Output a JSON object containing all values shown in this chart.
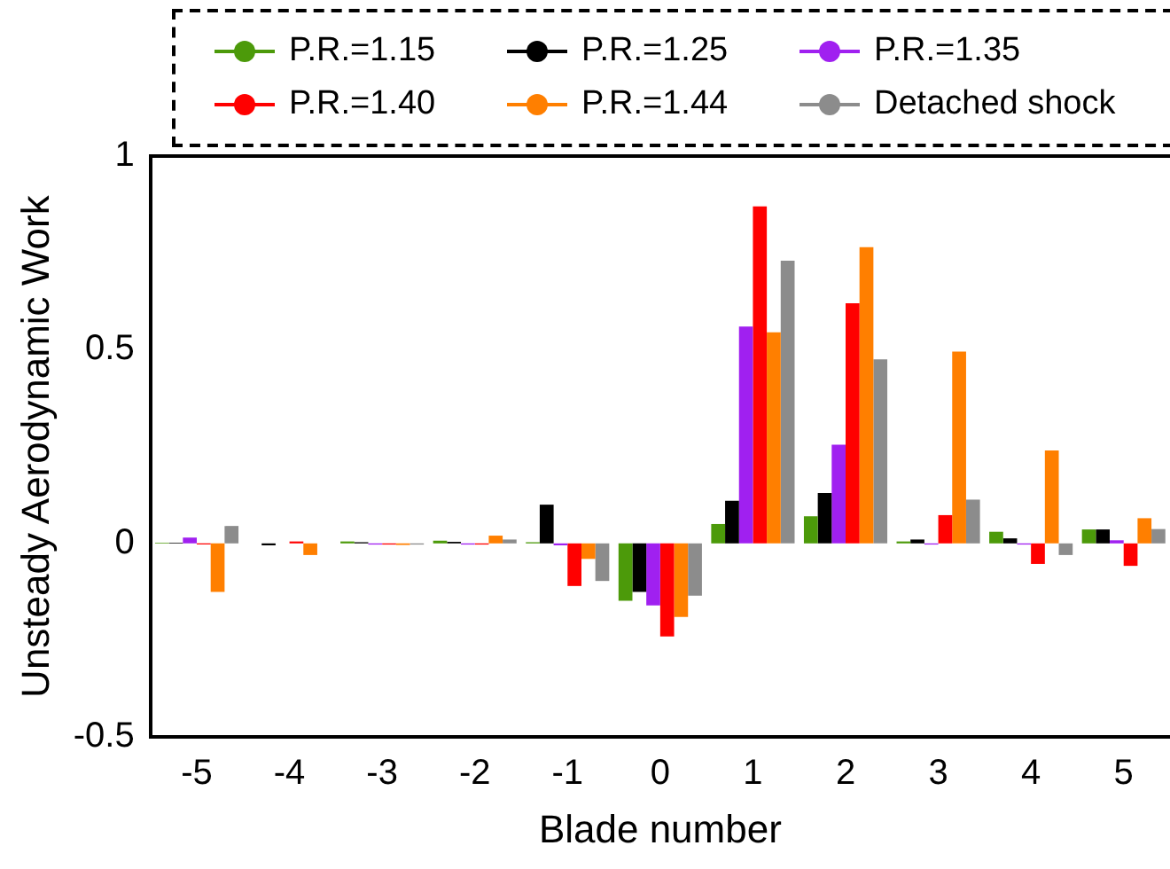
{
  "chart_data": {
    "type": "bar",
    "xlabel": "Blade number",
    "ylabel": "Unsteady Aerodynamic Work",
    "categories": [
      "-5",
      "-4",
      "-3",
      "-2",
      "-1",
      "0",
      "1",
      "2",
      "3",
      "4",
      "5"
    ],
    "series": [
      {
        "name": "P.R.=1.15",
        "color": "#4c9a0a",
        "values": [
          0.002,
          null,
          0.005,
          0.007,
          0.003,
          -0.148,
          0.05,
          0.07,
          0.005,
          0.03,
          0.036
        ]
      },
      {
        "name": "P.R.=1.25",
        "color": "#000000",
        "values": [
          0.002,
          -0.005,
          0.003,
          0.004,
          0.1,
          -0.125,
          0.11,
          0.13,
          0.01,
          0.013,
          0.036
        ]
      },
      {
        "name": "P.R.=1.35",
        "color": "#a020f0",
        "values": [
          0.015,
          null,
          -0.003,
          -0.003,
          -0.005,
          -0.16,
          0.56,
          0.255,
          -0.003,
          -0.003,
          0.008
        ]
      },
      {
        "name": "P.R.=1.40",
        "color": "#ff0000",
        "values": [
          -0.003,
          0.005,
          -0.003,
          -0.003,
          -0.11,
          -0.24,
          0.87,
          0.62,
          0.073,
          -0.053,
          -0.058
        ]
      },
      {
        "name": "P.R.=1.44",
        "color": "#ff7f00",
        "values": [
          -0.125,
          -0.03,
          -0.004,
          0.02,
          -0.04,
          -0.19,
          0.545,
          0.765,
          0.495,
          0.24,
          0.065
        ]
      },
      {
        "name": "Detached shock",
        "color": "#8c8c8c",
        "values": [
          0.045,
          null,
          -0.003,
          0.01,
          -0.097,
          -0.135,
          0.73,
          0.475,
          0.113,
          -0.03,
          0.037
        ]
      }
    ],
    "ylim": [
      -0.5,
      1
    ],
    "yticks": [
      -0.5,
      0,
      0.5,
      1
    ],
    "grid": false,
    "legend": "top"
  }
}
